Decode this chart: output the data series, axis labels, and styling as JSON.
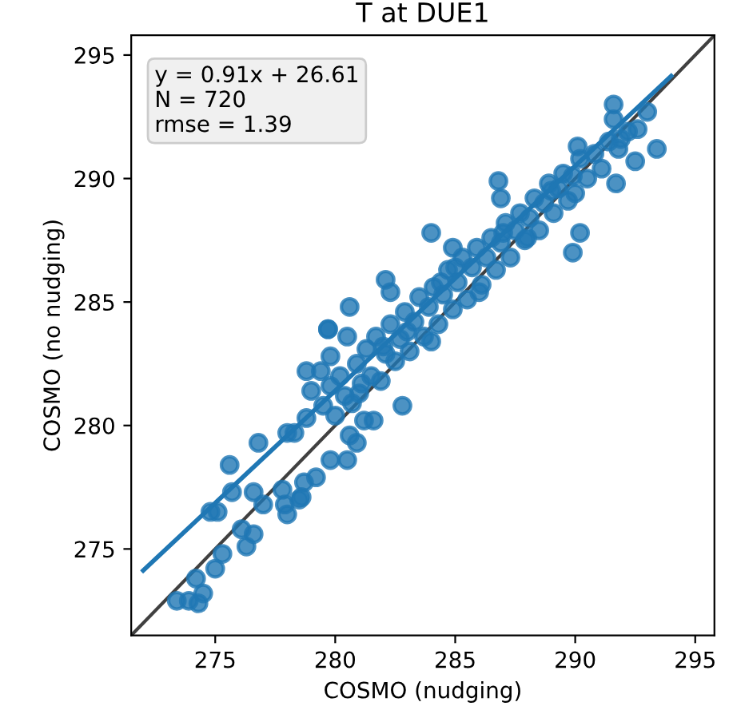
{
  "chart_data": {
    "type": "scatter",
    "title": "T at DUE1",
    "xlabel": "COSMO (nudging)",
    "ylabel": "COSMO (no nudging)",
    "xlim": [
      271.5,
      295.8
    ],
    "ylim": [
      271.5,
      295.8
    ],
    "xticks": [
      275,
      280,
      285,
      290,
      295
    ],
    "yticks": [
      275,
      280,
      285,
      290,
      295
    ],
    "grid": false,
    "legend": false,
    "annotations": [
      "y = 0.91x + 26.61\nN = 720\nrmse = 1.39"
    ],
    "series": [
      {
        "type": "line",
        "color": "#404040",
        "x": [
          271.5,
          295.8
        ],
        "values": [
          271.5,
          295.8
        ]
      },
      {
        "color": "#1f77b4",
        "marker": "circle",
        "x": [
          273.4,
          273.9,
          274.3,
          274.2,
          274.5,
          275.0,
          275.3,
          276.3,
          276.6,
          276.1,
          274.8,
          275.1,
          275.7,
          275.6,
          276.8,
          276.6,
          277.0,
          277.9,
          278.0,
          277.8,
          278.5,
          278.6,
          278.7,
          279.2,
          279.8,
          280.5,
          278.0,
          278.3,
          278.8,
          278.8,
          279.4,
          279.0,
          279.8,
          279.7,
          282.8,
          280.9,
          280.6,
          281.2,
          281.6,
          284.0,
          284.9,
          289.9,
          290.2,
          291.7,
          293.4,
          291.6,
          291.6,
          290.1,
          286.8,
          286.9,
          284.4,
          282.1,
          279.7,
          280.5,
          280.6,
          282.3,
          293.0,
          292.5,
          291.9,
          279.5,
          279.8,
          280.0,
          280.2,
          280.4,
          280.7,
          280.9,
          281.1,
          281.3,
          281.5,
          281.7,
          281.9,
          282.1,
          282.3,
          282.5,
          282.7,
          282.9,
          283.1,
          283.3,
          283.5,
          283.7,
          283.9,
          284.1,
          284.3,
          284.5,
          284.7,
          284.9,
          285.1,
          285.3,
          285.5,
          285.7,
          285.9,
          286.1,
          286.3,
          286.5,
          286.7,
          286.9,
          287.1,
          287.3,
          287.5,
          287.7,
          287.9,
          288.1,
          288.3,
          288.5,
          288.7,
          288.9,
          289.1,
          289.3,
          289.5,
          289.7,
          289.9,
          290.2,
          290.5,
          290.8,
          291.1,
          291.4,
          291.8,
          292.2,
          292.6,
          281.0,
          282.0,
          283.0,
          284.0,
          285.0,
          286.0,
          287.0,
          288.0,
          289.0,
          290.0
        ],
        "values": [
          272.9,
          272.9,
          272.8,
          273.8,
          273.2,
          274.2,
          274.8,
          275.1,
          275.6,
          275.8,
          276.5,
          276.5,
          277.3,
          278.4,
          279.3,
          277.3,
          276.8,
          276.8,
          276.4,
          277.4,
          277.0,
          277.1,
          277.7,
          277.9,
          278.6,
          278.6,
          279.7,
          279.7,
          280.3,
          282.2,
          282.2,
          281.4,
          282.8,
          283.9,
          280.8,
          279.3,
          279.6,
          280.2,
          280.2,
          287.8,
          287.2,
          287.0,
          287.8,
          289.8,
          291.2,
          293.0,
          292.4,
          291.3,
          289.9,
          289.2,
          285.8,
          285.9,
          283.9,
          283.6,
          284.8,
          285.4,
          292.7,
          290.7,
          291.6,
          280.8,
          281.6,
          280.4,
          282.0,
          281.2,
          280.9,
          282.5,
          281.7,
          283.1,
          282.0,
          283.6,
          281.8,
          282.9,
          284.1,
          282.6,
          283.5,
          284.6,
          283.0,
          284.2,
          285.2,
          283.6,
          284.8,
          285.6,
          284.1,
          285.3,
          286.3,
          284.7,
          285.8,
          286.8,
          285.1,
          286.4,
          287.2,
          285.7,
          286.8,
          287.6,
          286.3,
          287.4,
          288.2,
          286.8,
          287.9,
          288.6,
          287.5,
          288.4,
          289.2,
          287.9,
          289.0,
          289.8,
          288.6,
          289.6,
          290.2,
          289.1,
          290.1,
          290.8,
          290.0,
          291.0,
          290.4,
          291.5,
          291.2,
          291.9,
          292.0,
          281.3,
          283.2,
          283.8,
          283.4,
          286.4,
          285.4,
          287.8,
          287.6,
          289.5,
          289.4
        ]
      },
      {
        "type": "line",
        "color": "#1f77b4",
        "x": [
          272.0,
          294.0
        ],
        "values": [
          274.13,
          294.15
        ]
      }
    ]
  }
}
